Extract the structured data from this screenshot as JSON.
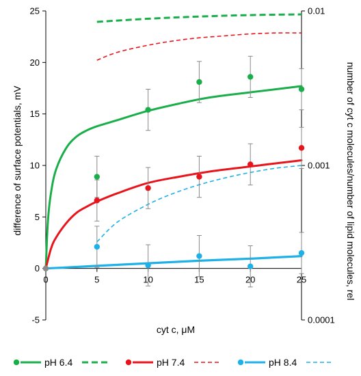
{
  "chart_data": {
    "type": "scatter",
    "xlabel": "cyt c, μM",
    "ylabel": "difference of surface potentials, mV",
    "y2label": "number of cyt c molecules/number of lipid molecules, rel",
    "xlim": [
      0,
      25
    ],
    "ylim": [
      -5,
      25
    ],
    "y2lim": [
      0.0001,
      0.01
    ],
    "y2_scale": "log",
    "x_ticks": [
      0,
      5,
      10,
      15,
      20,
      25
    ],
    "y_ticks": [
      -5,
      0,
      5,
      10,
      15,
      20,
      25
    ],
    "y2_ticks": [
      0.0001,
      0.001,
      0.01
    ],
    "x_tick_labels": [
      "0",
      "5",
      "10",
      "15",
      "20",
      "25"
    ],
    "y_tick_labels": [
      "-5",
      "0",
      "5",
      "10",
      "15",
      "20",
      "25"
    ],
    "y2_tick_labels": [
      "0.0001",
      "0.001",
      "0.01"
    ],
    "grid": false,
    "legend_position": "bottom",
    "series": [
      {
        "name": "pH 6.4",
        "color": "#1aae4a",
        "points": {
          "x": [
            0,
            5,
            10,
            15,
            20,
            25
          ],
          "y": [
            0,
            8.9,
            15.4,
            18.1,
            18.6,
            17.4
          ],
          "err": [
            0,
            2.0,
            2.0,
            2.0,
            2.0,
            2.0
          ]
        },
        "fit": {
          "x": [
            0,
            0.2,
            0.5,
            1,
            2,
            3,
            4,
            5,
            7,
            10,
            13,
            16,
            20,
            25
          ],
          "y": [
            0,
            4.5,
            7.3,
            9.6,
            11.7,
            12.8,
            13.4,
            13.8,
            14.4,
            15.3,
            16.0,
            16.6,
            17.1,
            17.7
          ]
        },
        "model": {
          "x": [
            5,
            10,
            15,
            20,
            25
          ],
          "y2": [
            0.0085,
            0.0089,
            0.0092,
            0.0094,
            0.0095
          ]
        }
      },
      {
        "name": "pH 7.4",
        "color": "#e8141c",
        "points": {
          "x": [
            0,
            5,
            10,
            15,
            20,
            25
          ],
          "y": [
            0,
            6.6,
            7.8,
            8.9,
            10.1,
            11.7
          ],
          "err": [
            0,
            2.0,
            2.0,
            2.0,
            2.0,
            2.0
          ]
        },
        "fit": {
          "x": [
            0,
            0.5,
            1,
            2,
            3,
            4,
            5,
            7,
            10,
            13,
            16,
            20,
            25
          ],
          "y": [
            0,
            1.9,
            3.0,
            4.4,
            5.4,
            6.0,
            6.5,
            7.3,
            8.3,
            8.9,
            9.4,
            9.9,
            10.5
          ]
        },
        "model": {
          "x": [
            5,
            7,
            10,
            12.5,
            15,
            17.5,
            20,
            22.5,
            25
          ],
          "y2": [
            0.0048,
            0.0054,
            0.006,
            0.0064,
            0.0067,
            0.0069,
            0.0071,
            0.0072,
            0.0072
          ]
        }
      },
      {
        "name": "pH 8.4",
        "color": "#1eb1e8",
        "points": {
          "x": [
            0,
            5,
            10,
            15,
            20,
            25
          ],
          "y": [
            0,
            2.1,
            0.3,
            1.2,
            0.2,
            1.5
          ],
          "err": [
            0,
            2.0,
            2.0,
            2.0,
            2.0,
            2.0
          ]
        },
        "fit": {
          "x": [
            0,
            5,
            10,
            15,
            20,
            25
          ],
          "y": [
            0,
            0.25,
            0.5,
            0.75,
            0.95,
            1.2
          ]
        },
        "model": {
          "x": [
            5,
            7,
            10,
            12.5,
            15,
            17.5,
            20,
            22.5,
            25
          ],
          "y2": [
            0.00032,
            0.00043,
            0.00056,
            0.00066,
            0.00075,
            0.00083,
            0.0009,
            0.00096,
            0.001
          ]
        }
      }
    ]
  }
}
